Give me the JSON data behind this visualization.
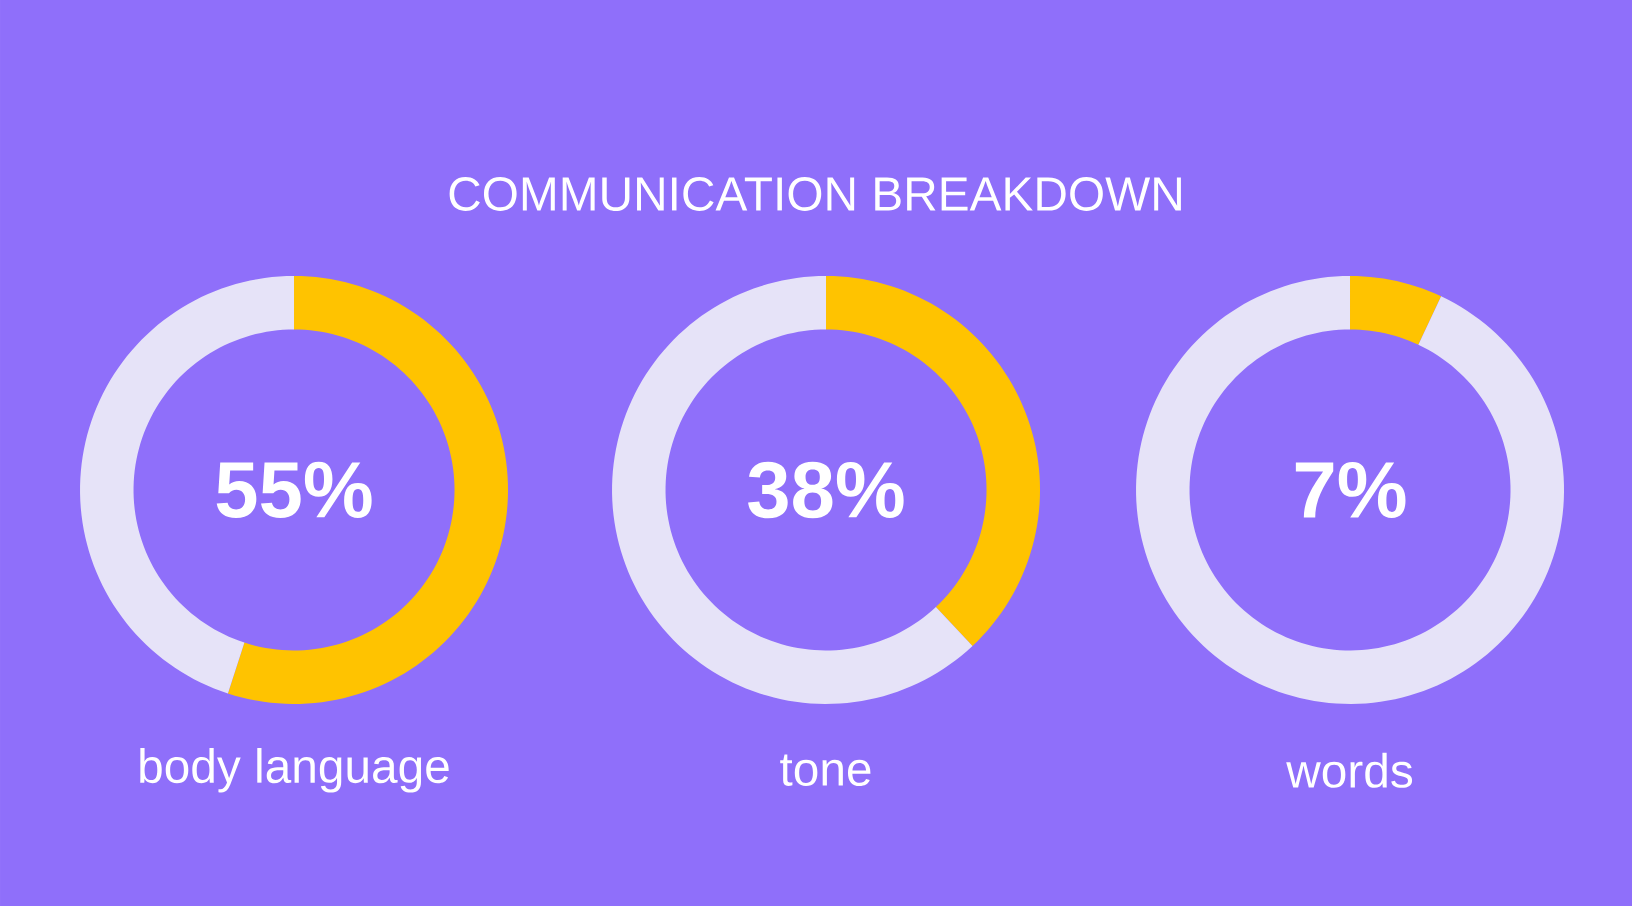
{
  "chart_data": [
    {
      "type": "other",
      "title": "COMMUNICATION  BREAKDOWN"
    },
    {
      "type": "donut",
      "title": "body language",
      "categories": [
        null,
        null
      ],
      "values": [
        55,
        45
      ],
      "colors": [
        "#ffc300",
        "#e6e3f8"
      ],
      "annotations": [
        "55%"
      ]
    },
    {
      "type": "donut",
      "title": "tone",
      "categories": [
        null,
        null
      ],
      "values": [
        38,
        62
      ],
      "colors": [
        "#ffc300",
        "#e6e3f8"
      ],
      "annotations": [
        "38%"
      ]
    },
    {
      "type": "donut",
      "title": "words",
      "categories": [
        null,
        null
      ],
      "values": [
        7,
        93
      ],
      "colors": [
        "#ffc300",
        "#e6e3f8"
      ],
      "annotations": [
        "7%"
      ]
    }
  ]
}
